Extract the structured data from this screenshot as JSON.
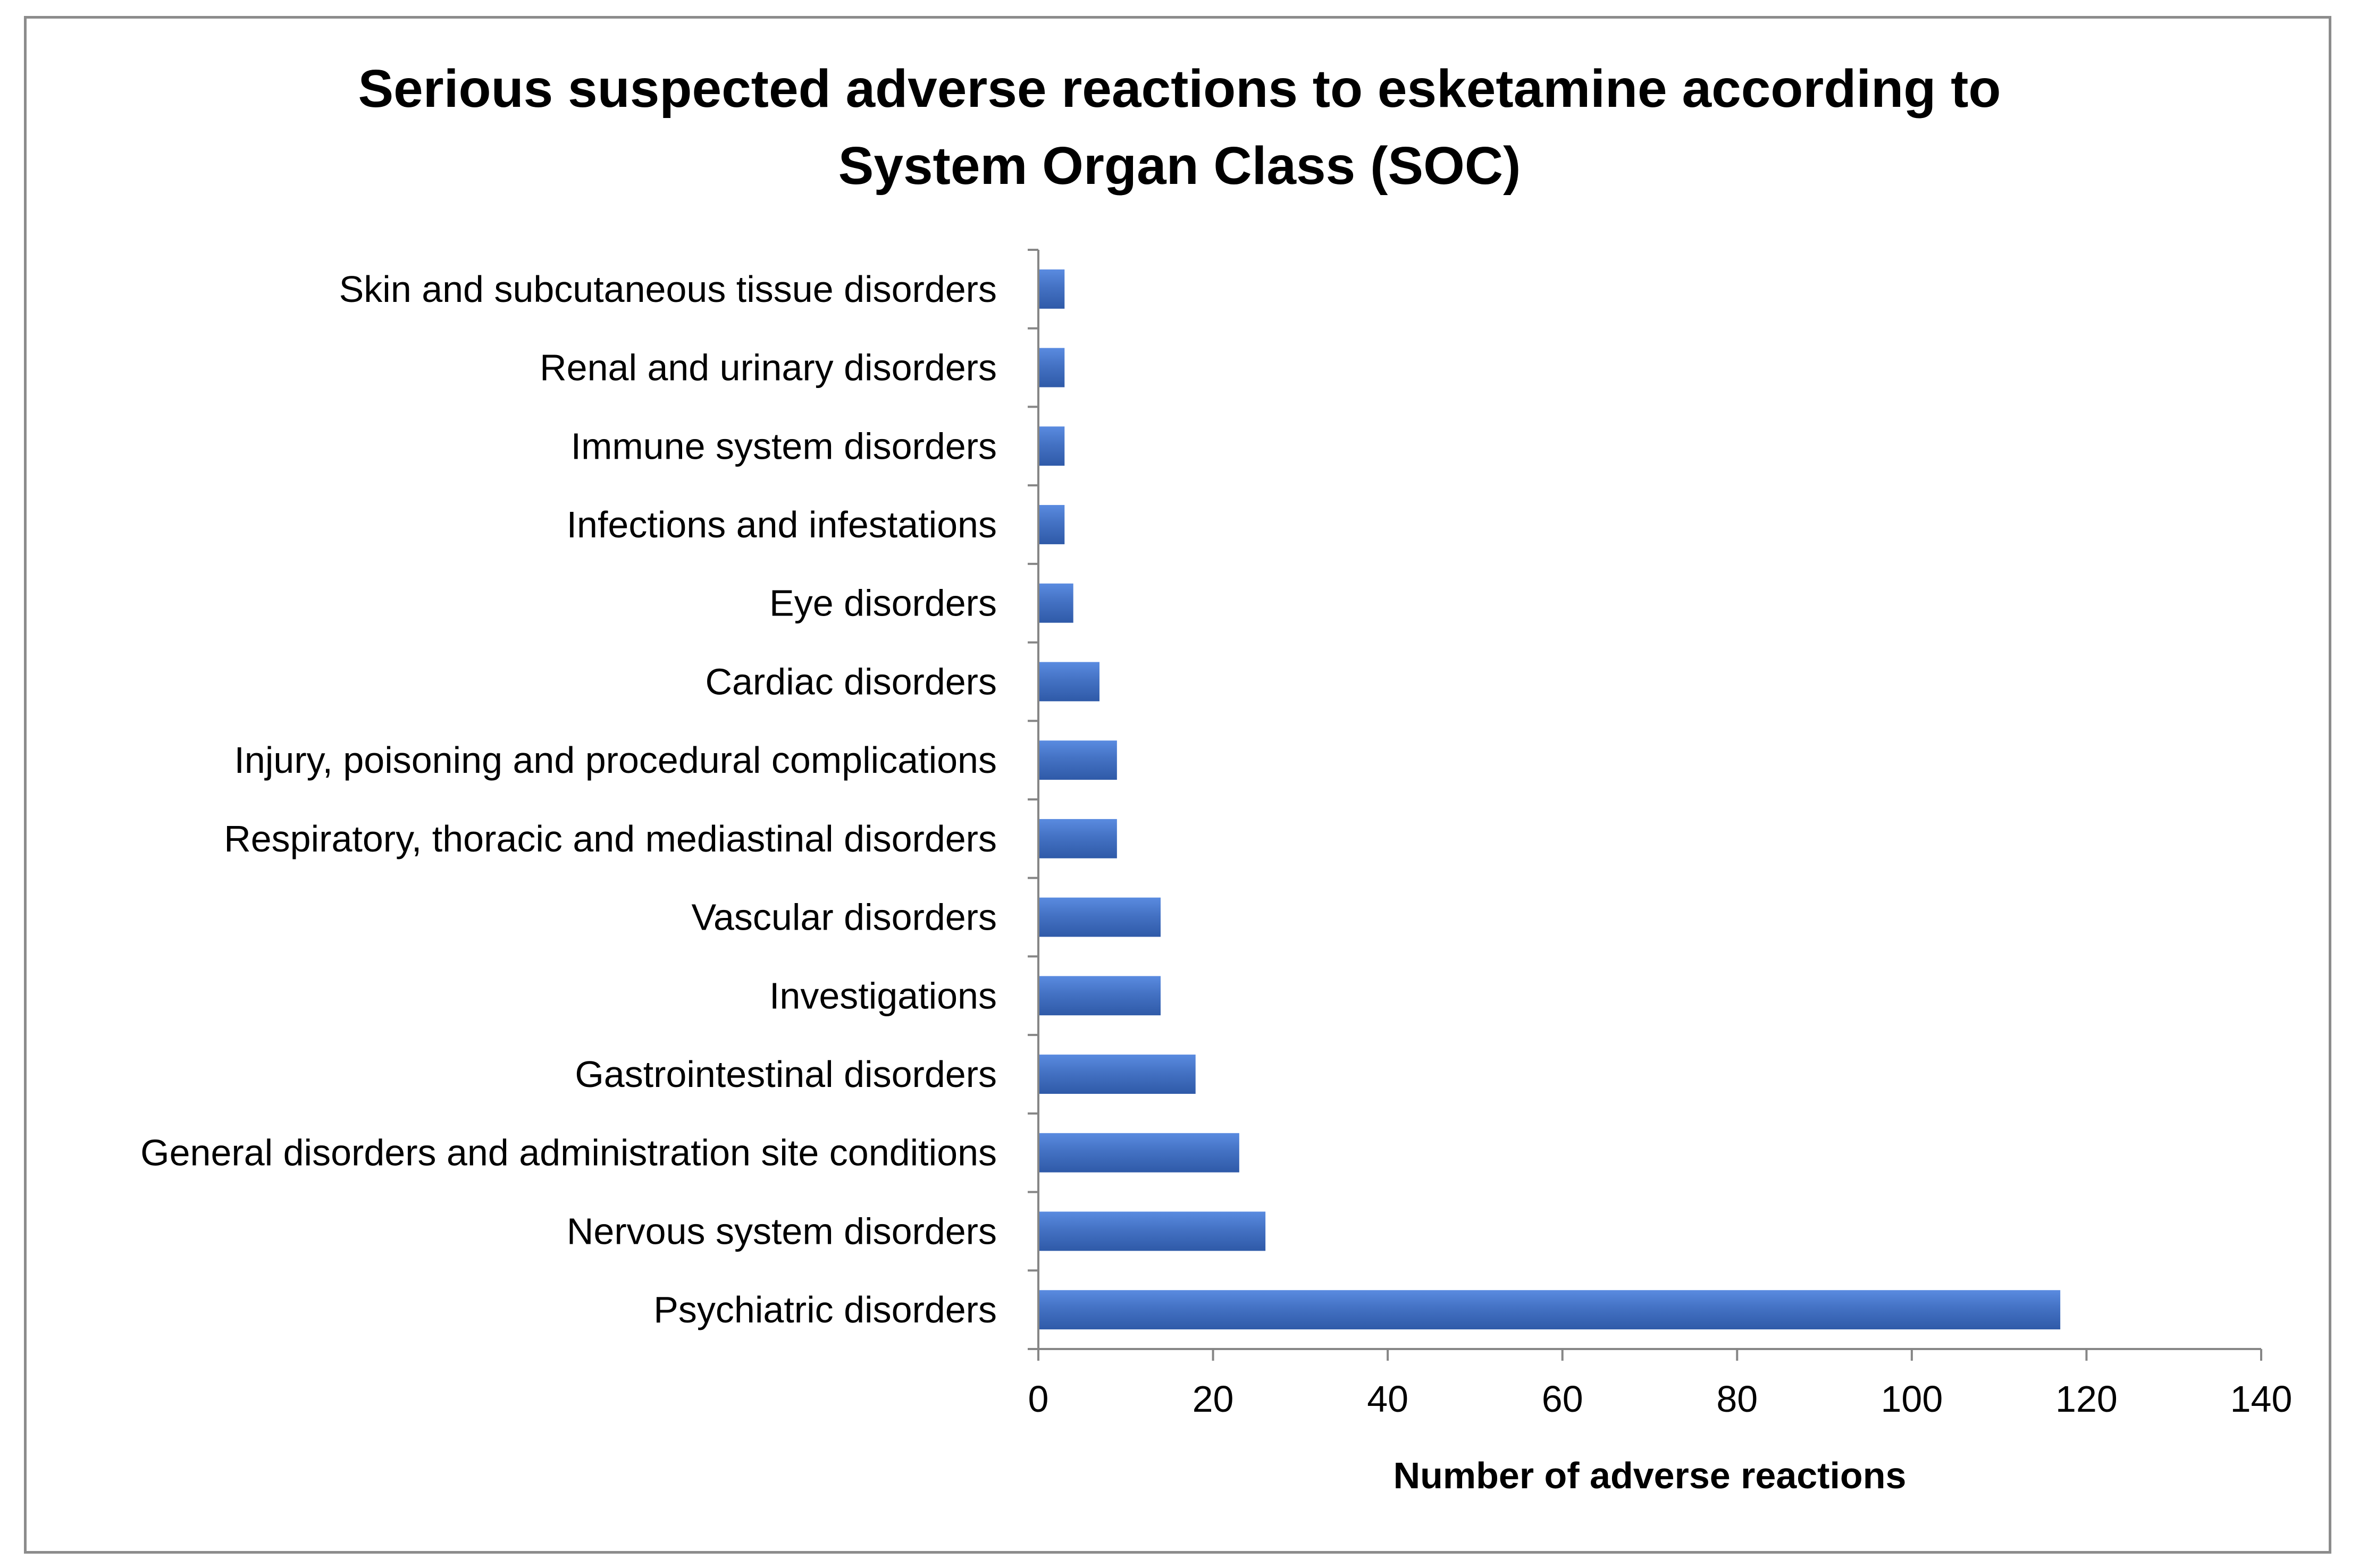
{
  "chart_data": {
    "type": "bar",
    "orientation": "horizontal",
    "title_lines": [
      "Serious suspected adverse reactions to esketamine according to",
      "System Organ Class (SOC)"
    ],
    "xlabel": "Number of adverse reactions",
    "ylabel": "",
    "xlim": [
      0,
      140
    ],
    "xticks": [
      "0",
      "20",
      "40",
      "60",
      "80",
      "100",
      "120",
      "140"
    ],
    "grid": false,
    "legend": "none",
    "bar_color": "#4472C4",
    "categories": [
      "Skin and subcutaneous tissue disorders",
      "Renal and urinary disorders",
      "Immune system disorders",
      "Infections and infestations",
      "Eye disorders",
      "Cardiac disorders",
      "Injury, poisoning and procedural complications",
      "Respiratory, thoracic and mediastinal disorders",
      "Vascular disorders",
      "Investigations",
      "Gastrointestinal disorders",
      "General disorders and administration site conditions",
      "Nervous system disorders",
      "Psychiatric disorders"
    ],
    "values": [
      3,
      3,
      3,
      3,
      4,
      7,
      9,
      9,
      14,
      14,
      18,
      23,
      26,
      117
    ]
  }
}
